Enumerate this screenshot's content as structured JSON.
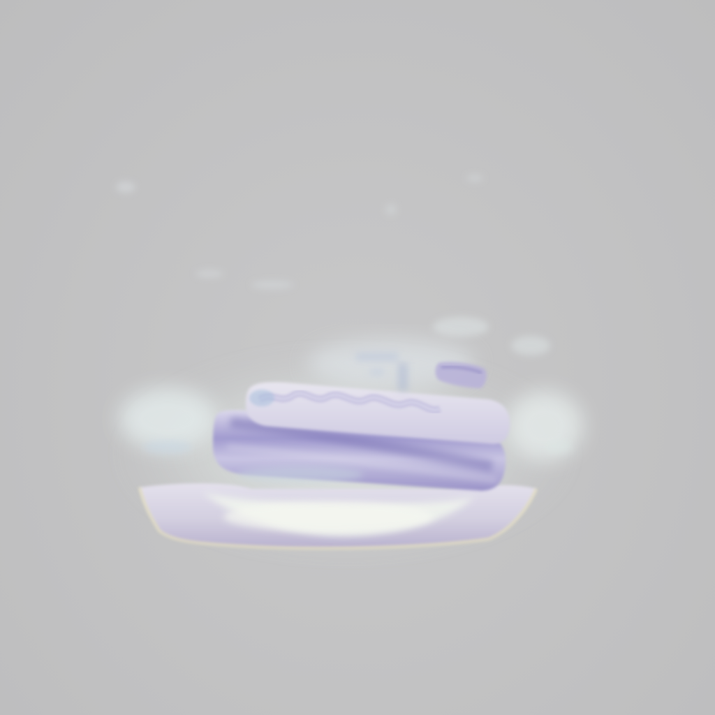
{
  "image": {
    "subject": "",
    "colors": {
      "background": "#c3c3c3",
      "glow": "#f2f6f2",
      "plate": "#d9d6e2",
      "plate_rim": "#e8e4cc",
      "cake_light": "#d6d3e6",
      "cake_stripe": "#8d86c0",
      "frosting": "#c8c5df"
    }
  }
}
